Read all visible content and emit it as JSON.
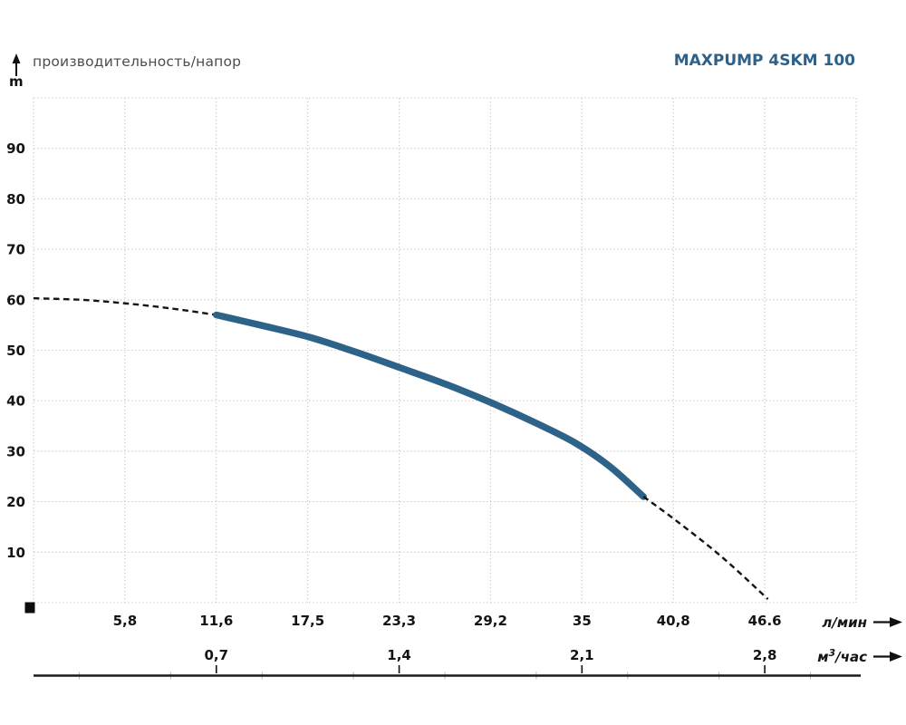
{
  "header": {
    "left_title": "производительность/напор",
    "right_title": "MAXPUMP 4SKM 100",
    "y_axis_unit": "m"
  },
  "chart_data": {
    "type": "line",
    "title": "MAXPUMP 4SKM 100",
    "subtitle": "производительность/напор",
    "ylabel": "напор, m",
    "ylim": [
      0,
      100
    ],
    "grid": true,
    "legend": "none",
    "y_ticks": [
      {
        "label": "90",
        "value": 90
      },
      {
        "label": "80",
        "value": 80
      },
      {
        "label": "70",
        "value": 70
      },
      {
        "label": "60",
        "value": 60
      },
      {
        "label": "50",
        "value": 50
      },
      {
        "label": "40",
        "value": 40
      },
      {
        "label": "30",
        "value": 30
      },
      {
        "label": "20",
        "value": 20
      },
      {
        "label": "10",
        "value": 10
      }
    ],
    "x_axis_lmin": {
      "unit": "л/мин",
      "xlim": [
        0,
        52.2
      ],
      "ticks": [
        {
          "label": "5,8",
          "value": 5.8,
          "col": 1
        },
        {
          "label": "11,6",
          "value": 11.6,
          "col": 2
        },
        {
          "label": "17,5",
          "value": 17.5,
          "col": 3
        },
        {
          "label": "23,3",
          "value": 23.3,
          "col": 4
        },
        {
          "label": "29,2",
          "value": 29.2,
          "col": 5
        },
        {
          "label": "35",
          "value": 35,
          "col": 6
        },
        {
          "label": "40,8",
          "value": 40.8,
          "col": 7
        },
        {
          "label": "46.6",
          "value": 46.6,
          "col": 8
        }
      ]
    },
    "x_axis_m3h": {
      "unit_parts": {
        "base": "м",
        "sup": "3",
        "rest": "/час"
      },
      "ticks": [
        {
          "label": "0,7",
          "value": 0.7,
          "col": 2
        },
        {
          "label": "1,4",
          "value": 1.4,
          "col": 4
        },
        {
          "label": "2,1",
          "value": 2.1,
          "col": 6
        },
        {
          "label": "2,8",
          "value": 2.8,
          "col": 8
        }
      ]
    },
    "series": [
      {
        "name": "head-curve-extrapolated-left",
        "style": "dashed",
        "points": [
          [
            0,
            60.3
          ],
          [
            3,
            60.0
          ],
          [
            5.8,
            59.3
          ],
          [
            8.7,
            58.3
          ],
          [
            11.6,
            57.0
          ]
        ]
      },
      {
        "name": "head-curve-working-range",
        "style": "solid",
        "points": [
          [
            11.6,
            57.0
          ],
          [
            14.5,
            54.9
          ],
          [
            17.5,
            52.6
          ],
          [
            20.4,
            49.7
          ],
          [
            23.3,
            46.5
          ],
          [
            26.3,
            43.1
          ],
          [
            29.2,
            39.4
          ],
          [
            32,
            35.4
          ],
          [
            34.4,
            31.6
          ],
          [
            36.6,
            26.9
          ],
          [
            38.7,
            21.0
          ]
        ]
      },
      {
        "name": "head-curve-extrapolated-right",
        "style": "dashed",
        "points": [
          [
            38.7,
            21.0
          ],
          [
            40.8,
            16.2
          ],
          [
            43.7,
            9.0
          ],
          [
            46.6,
            0.7
          ]
        ]
      }
    ],
    "colors": {
      "curve": "#2e6389",
      "dashed": "#141414",
      "grid": "#c9c9c9",
      "tick_text": "#141414",
      "title": "#2e6189",
      "subtitle_text": "#4d4d4d",
      "axis_line": "#1a1a1a",
      "minor_tick": "#b4b4b4"
    }
  }
}
